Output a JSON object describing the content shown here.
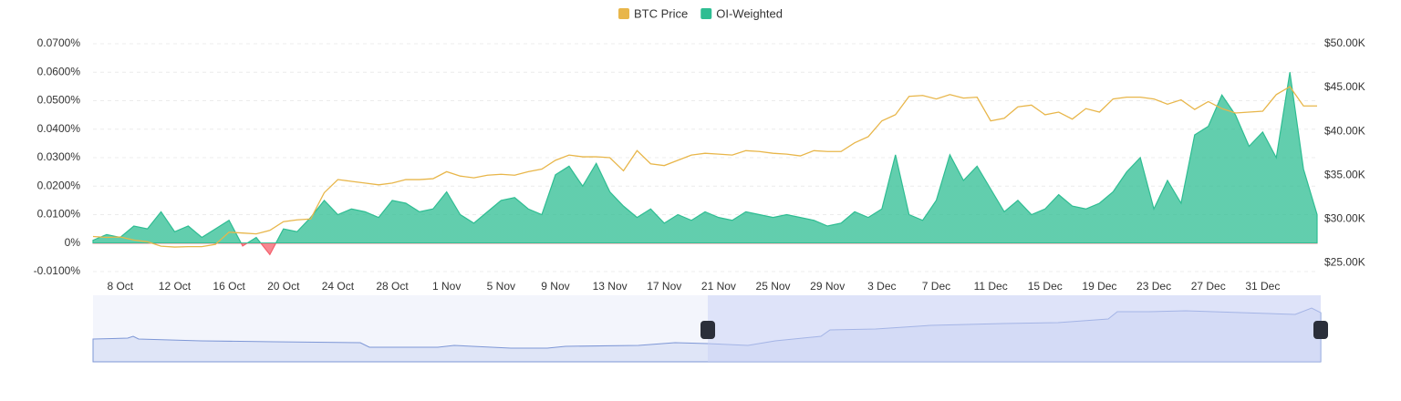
{
  "chart_data": {
    "type": "area",
    "categories": [
      null,
      null,
      "8 Oct",
      null,
      null,
      null,
      "12 Oct",
      null,
      null,
      null,
      "16 Oct",
      null,
      null,
      null,
      "20 Oct",
      null,
      null,
      null,
      "24 Oct",
      null,
      null,
      null,
      "28 Oct",
      null,
      null,
      null,
      "1 Nov",
      null,
      null,
      null,
      "5 Nov",
      null,
      null,
      null,
      "9 Nov",
      null,
      null,
      null,
      "13 Nov",
      null,
      null,
      null,
      "17 Nov",
      null,
      null,
      null,
      "21 Nov",
      null,
      null,
      null,
      "25 Nov",
      null,
      null,
      null,
      "29 Nov",
      null,
      null,
      null,
      "3 Dec",
      null,
      null,
      null,
      "7 Dec",
      null,
      null,
      null,
      "11 Dec",
      null,
      null,
      null,
      "15 Dec",
      null,
      null,
      null,
      "19 Dec",
      null,
      null,
      null,
      "23 Dec",
      null,
      null,
      null,
      "27 Dec",
      null,
      null,
      null,
      "31 Dec",
      null,
      null,
      null,
      null
    ],
    "series": [
      {
        "name": "BTC Price",
        "type": "line",
        "axis": "y2",
        "color": "#e8b64a",
        "values": [
          28000,
          27900,
          27950,
          27600,
          27400,
          26900,
          26800,
          26850,
          26850,
          27100,
          28500,
          28400,
          28300,
          28700,
          29700,
          29900,
          30000,
          33000,
          34500,
          34300,
          34100,
          33900,
          34100,
          34500,
          34500,
          34600,
          35400,
          34900,
          34700,
          35000,
          35100,
          35000,
          35400,
          35700,
          36700,
          37300,
          37100,
          37100,
          37000,
          35500,
          37800,
          36300,
          36100,
          36700,
          37300,
          37500,
          37400,
          37300,
          37800,
          37700,
          37500,
          37400,
          37200,
          37800,
          37700,
          37700,
          38700,
          39400,
          41200,
          41900,
          44000,
          44100,
          43700,
          44200,
          43800,
          43900,
          41200,
          41500,
          42800,
          43000,
          41900,
          42200,
          41400,
          42600,
          42200,
          43700,
          43900,
          43900,
          43700,
          43100,
          43600,
          42500,
          43400,
          42600,
          42100,
          42200,
          42300,
          44200,
          45100,
          42900,
          42900
        ]
      },
      {
        "name": "OI-Weighted",
        "type": "area",
        "color": "#2ebd92",
        "negative_color": "#f4606c",
        "values": [
          0.001,
          0.003,
          0.002,
          0.006,
          0.005,
          0.011,
          0.004,
          0.006,
          0.002,
          0.005,
          0.008,
          -0.001,
          0.002,
          -0.004,
          0.005,
          0.004,
          0.009,
          0.015,
          0.01,
          0.012,
          0.011,
          0.009,
          0.015,
          0.014,
          0.011,
          0.012,
          0.018,
          0.01,
          0.007,
          0.011,
          0.015,
          0.016,
          0.012,
          0.01,
          0.024,
          0.027,
          0.02,
          0.028,
          0.018,
          0.013,
          0.009,
          0.012,
          0.007,
          0.01,
          0.008,
          0.011,
          0.009,
          0.008,
          0.011,
          0.01,
          0.009,
          0.01,
          0.009,
          0.008,
          0.006,
          0.007,
          0.011,
          0.009,
          0.012,
          0.031,
          0.01,
          0.008,
          0.015,
          0.031,
          0.022,
          0.027,
          0.019,
          0.011,
          0.015,
          0.01,
          0.012,
          0.017,
          0.013,
          0.012,
          0.014,
          0.018,
          0.025,
          0.03,
          0.012,
          0.022,
          0.014,
          0.038,
          0.041,
          0.052,
          0.045,
          0.034,
          0.039,
          0.03,
          0.06,
          0.026,
          0.01
        ]
      }
    ],
    "ylim": [
      -0.01,
      0.07
    ],
    "yticks": [
      {
        "value": -0.01,
        "label": "-0.0100%"
      },
      {
        "value": 0,
        "label": "0%"
      },
      {
        "value": 0.01,
        "label": "0.0100%"
      },
      {
        "value": 0.02,
        "label": "0.0200%"
      },
      {
        "value": 0.03,
        "label": "0.0300%"
      },
      {
        "value": 0.04,
        "label": "0.0400%"
      },
      {
        "value": 0.05,
        "label": "0.0500%"
      },
      {
        "value": 0.06,
        "label": "0.0600%"
      },
      {
        "value": 0.07,
        "label": "0.0700%"
      }
    ],
    "y2lim": [
      24000,
      50000
    ],
    "y2ticks": [
      {
        "value": 25000,
        "label": "$25.00K"
      },
      {
        "value": 30000,
        "label": "$30.00K"
      },
      {
        "value": 35000,
        "label": "$35.00K"
      },
      {
        "value": 40000,
        "label": "$40.00K"
      },
      {
        "value": 45000,
        "label": "$45.00K"
      },
      {
        "value": 50000,
        "label": "$50.00K"
      }
    ],
    "grid": true,
    "legend": "top"
  }
}
